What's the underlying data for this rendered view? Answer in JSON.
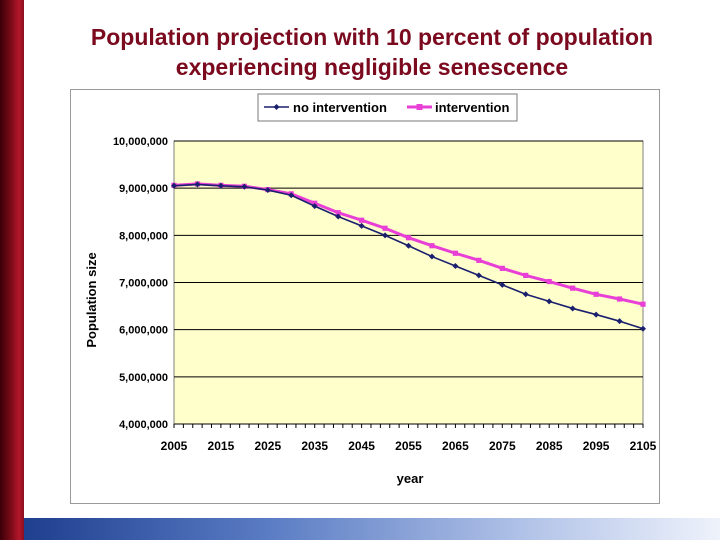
{
  "slide": {
    "title_line1": "Population projection with 10 percent of population",
    "title_line2": "experiencing negligible senescence"
  },
  "colors": {
    "title": "#7b0a1f",
    "plot_bg": "#ffffcc",
    "no_intervention": "#1a1f6e",
    "intervention": "#e83fd6"
  },
  "chart_data": {
    "type": "line",
    "title": "",
    "xlabel": "year",
    "ylabel": "Population size",
    "xlim": [
      2005,
      2105
    ],
    "ylim": [
      4000000,
      10000000
    ],
    "x_ticks": [
      "2005",
      "2015",
      "2025",
      "2035",
      "2045",
      "2055",
      "2065",
      "2075",
      "2085",
      "2095",
      "2105"
    ],
    "y_ticks": [
      "4,000,000",
      "5,000,000",
      "6,000,000",
      "7,000,000",
      "8,000,000",
      "9,000,000",
      "10,000,000"
    ],
    "grid": true,
    "legend_position": "top",
    "series": [
      {
        "name": "no intervention",
        "marker": "diamond",
        "x": [
          2005,
          2010,
          2015,
          2020,
          2025,
          2030,
          2035,
          2040,
          2045,
          2050,
          2055,
          2060,
          2065,
          2070,
          2075,
          2080,
          2085,
          2090,
          2095,
          2100,
          2105
        ],
        "values": [
          9050000,
          9080000,
          9050000,
          9030000,
          8960000,
          8850000,
          8620000,
          8400000,
          8200000,
          8000000,
          7780000,
          7550000,
          7350000,
          7150000,
          6950000,
          6750000,
          6600000,
          6450000,
          6320000,
          6180000,
          6020000
        ]
      },
      {
        "name": "intervention",
        "marker": "square",
        "x": [
          2005,
          2010,
          2015,
          2020,
          2025,
          2030,
          2035,
          2040,
          2045,
          2050,
          2055,
          2060,
          2065,
          2070,
          2075,
          2080,
          2085,
          2090,
          2095,
          2100,
          2105
        ],
        "values": [
          9060000,
          9090000,
          9060000,
          9040000,
          8970000,
          8880000,
          8680000,
          8480000,
          8320000,
          8150000,
          7950000,
          7780000,
          7620000,
          7470000,
          7300000,
          7150000,
          7020000,
          6880000,
          6750000,
          6650000,
          6540000
        ]
      }
    ]
  }
}
